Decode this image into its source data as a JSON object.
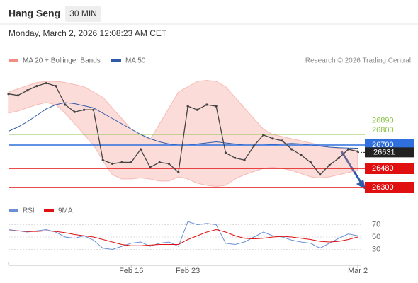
{
  "header": {
    "title": "Hang Seng",
    "interval": "30 MIN",
    "datetime": "Monday, March 2, 2026 12:08:23 AM CET"
  },
  "chart_data": [
    {
      "type": "line",
      "source": "Research © 2026 Trading Central",
      "ylim": [
        26200,
        27400
      ],
      "close": [
        27182,
        27168,
        27215,
        27256,
        27283,
        27256,
        27080,
        27012,
        27032,
        27032,
        26558,
        26524,
        26537,
        26537,
        26660,
        26490,
        26537,
        26524,
        26443,
        27066,
        27032,
        27080,
        27066,
        26626,
        26578,
        26558,
        26693,
        26795,
        26761,
        26741,
        26660,
        26605,
        26537,
        26422,
        26510,
        26578,
        26660,
        26639
      ],
      "close_color": "#444444",
      "series": [
        {
          "name": "MA 20 + Bollinger Bands",
          "color": "#f28b82",
          "upper": [
            27200,
            27230,
            27260,
            27290,
            27300,
            27300,
            27290,
            27270,
            27250,
            27200,
            27150,
            27050,
            26950,
            26850,
            26800,
            26750,
            26900,
            27050,
            27200,
            27250,
            27300,
            27310,
            27300,
            27250,
            27150,
            27050,
            26950,
            26850,
            26800,
            26780,
            26760,
            26740,
            26720,
            26700,
            26680,
            26670,
            26660,
            26650
          ],
          "lower": [
            27000,
            27020,
            27050,
            27080,
            27100,
            27080,
            27000,
            26900,
            26800,
            26700,
            26550,
            26420,
            26380,
            26380,
            26390,
            26380,
            26360,
            26360,
            26400,
            26380,
            26340,
            26320,
            26310,
            26320,
            26380,
            26420,
            26450,
            26480,
            26490,
            26480,
            26460,
            26430,
            26400,
            26390,
            26400,
            26420,
            26440,
            26460
          ]
        },
        {
          "name": "MA 50",
          "color": "#2f5aa8",
          "values": [
            26830,
            26870,
            26920,
            26980,
            27040,
            27080,
            27100,
            27090,
            27070,
            27050,
            27000,
            26950,
            26900,
            26850,
            26800,
            26760,
            26730,
            26710,
            26700,
            26700,
            26710,
            26720,
            26730,
            26720,
            26710,
            26700,
            26700,
            26700,
            26705,
            26710,
            26715,
            26710,
            26700,
            26690,
            26680,
            26675,
            26672,
            26670
          ]
        }
      ],
      "levels": [
        {
          "value": 26890,
          "color": "#8bc34a",
          "style": "plain"
        },
        {
          "value": 26800,
          "color": "#8bc34a",
          "style": "plain"
        },
        {
          "value": 26700,
          "color": "#2f6fde",
          "style": "tag"
        },
        {
          "value": 26631,
          "color": "#222222",
          "style": "dotted"
        },
        {
          "value": 26480,
          "color": "#e01010",
          "style": "tag"
        },
        {
          "value": 26300,
          "color": "#e01010",
          "style": "tag"
        }
      ]
    },
    {
      "type": "line",
      "ylim": [
        10,
        90
      ],
      "yticks": [
        70,
        50,
        30
      ],
      "categories": [
        null,
        null,
        null,
        null,
        null,
        null,
        null,
        null,
        null,
        null,
        null,
        null,
        null,
        "Feb 16",
        null,
        null,
        null,
        null,
        null,
        "Feb 23",
        null,
        null,
        null,
        null,
        null,
        null,
        null,
        null,
        null,
        null,
        null,
        null,
        null,
        null,
        null,
        null,
        null,
        "Mar 2"
      ],
      "series": [
        {
          "name": "RSI",
          "color": "#6b8fd6",
          "values": [
            62,
            60,
            58,
            60,
            62,
            58,
            50,
            48,
            52,
            45,
            32,
            30,
            35,
            40,
            42,
            35,
            40,
            42,
            35,
            75,
            70,
            72,
            70,
            40,
            38,
            42,
            50,
            58,
            52,
            50,
            45,
            42,
            40,
            32,
            40,
            48,
            55,
            52
          ]
        },
        {
          "name": "9MA",
          "color": "#e01010",
          "values": [
            60,
            60,
            59,
            59,
            60,
            59,
            57,
            54,
            52,
            50,
            46,
            42,
            38,
            36,
            36,
            37,
            38,
            38,
            38,
            46,
            52,
            58,
            62,
            58,
            52,
            48,
            47,
            48,
            50,
            51,
            50,
            48,
            46,
            43,
            42,
            43,
            46,
            50
          ]
        }
      ]
    }
  ]
}
